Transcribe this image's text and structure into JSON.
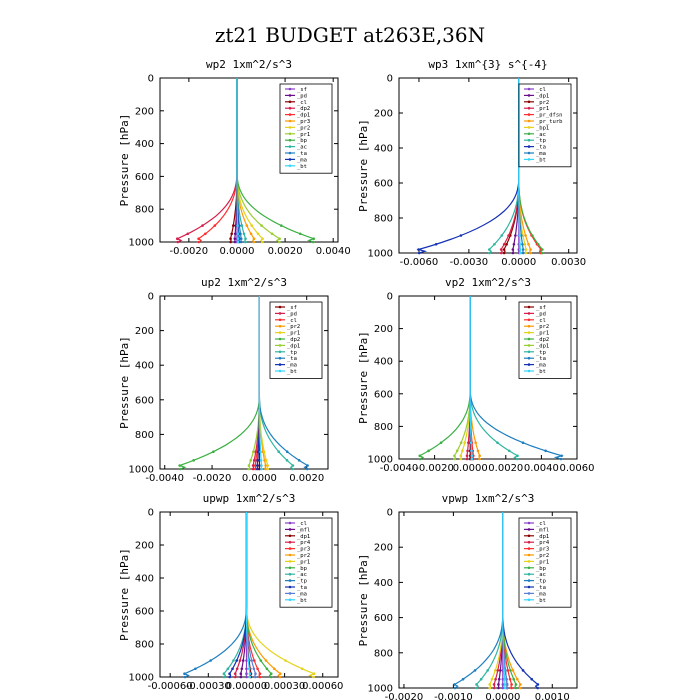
{
  "figure_title": "zt21  BUDGET at263E,36N",
  "chart_data": [
    {
      "type": "line",
      "title": "wp2   1xm^2/s^3",
      "ylabel": "Pressure [hPa]",
      "xlim": [
        -0.0032,
        0.0042
      ],
      "ylim": [
        1000,
        0
      ],
      "xticks": [
        -0.002,
        0.0,
        0.002,
        0.004
      ],
      "xtick_labels": [
        "-0.0020",
        "0.0000",
        "0.0020",
        "0.0040"
      ],
      "yticks": [
        0,
        200,
        400,
        600,
        800,
        1000
      ],
      "ytick_labels": [
        "0",
        "200",
        "400",
        "600",
        "800",
        "1000"
      ],
      "legend_position": "upper-right",
      "series": [
        {
          "name": "_sf",
          "color": "#8a3fc9",
          "peak": 0.0,
          "dir": 1
        },
        {
          "name": "_pd",
          "color": "#6a0f8c",
          "peak": -0.0001,
          "dir": 1
        },
        {
          "name": "_cl",
          "color": "#8b0000",
          "peak": -0.0003,
          "dir": 1
        },
        {
          "name": "_dp2",
          "color": "#d6204b",
          "peak": -0.0028,
          "dir": 1
        },
        {
          "name": "_dp1",
          "color": "#ff2d2d",
          "peak": -0.0018,
          "dir": 1
        },
        {
          "name": "_pr3",
          "color": "#ff9900",
          "peak": 0.0008,
          "dir": 1
        },
        {
          "name": "_pr2",
          "color": "#e6d21b",
          "peak": 0.0012,
          "dir": 1
        },
        {
          "name": "_pr1",
          "color": "#9acd32",
          "peak": 0.002,
          "dir": 1
        },
        {
          "name": "_bp",
          "color": "#3cb043",
          "peak": 0.0036,
          "dir": 1
        },
        {
          "name": "_ac",
          "color": "#2fb5a0",
          "peak": 0.0004,
          "dir": 1
        },
        {
          "name": "_ta",
          "color": "#1f7fbf",
          "peak": 0.0002,
          "dir": 1
        },
        {
          "name": "_ma",
          "color": "#1432b4",
          "peak": 0.0001,
          "dir": 1
        },
        {
          "name": "_bt",
          "color": "#33d6ff",
          "peak": 5e-05,
          "dir": 1
        }
      ]
    },
    {
      "type": "line",
      "title": "wp3   1xm^{3} s^{-4}",
      "ylabel": "Pressure [hPa]",
      "xlim": [
        -0.0072,
        0.0035
      ],
      "ylim": [
        1000,
        0
      ],
      "xticks": [
        -0.006,
        -0.003,
        0.0,
        0.003
      ],
      "xtick_labels": [
        "-0.0060",
        "-0.0030",
        "0.0000",
        "0.0030"
      ],
      "yticks": [
        0,
        200,
        400,
        600,
        800,
        1000
      ],
      "ytick_labels": [
        "0",
        "200",
        "400",
        "600",
        "800",
        "1000"
      ],
      "legend_position": "upper-right",
      "series": [
        {
          "name": "_cl",
          "color": "#8a3fc9",
          "peak": 0.0,
          "dir": 1
        },
        {
          "name": "_dp1",
          "color": "#6a0f8c",
          "peak": -0.0004,
          "dir": 1
        },
        {
          "name": "_pr2",
          "color": "#8b0000",
          "peak": -0.001,
          "dir": 1
        },
        {
          "name": "_pr1",
          "color": "#d6204b",
          "peak": -0.0012,
          "dir": 1
        },
        {
          "name": "_pr_dfsn",
          "color": "#ff2d2d",
          "peak": 0.0015,
          "dir": 1
        },
        {
          "name": "_pr_turb",
          "color": "#ff9900",
          "peak": 0.0008,
          "dir": 1
        },
        {
          "name": "_bp1",
          "color": "#e6d21b",
          "peak": 0.0005,
          "dir": 1
        },
        {
          "name": "_ac",
          "color": "#3cb043",
          "peak": 0.0016,
          "dir": 1
        },
        {
          "name": "_tp",
          "color": "#2fb5a0",
          "peak": -0.002,
          "dir": 1
        },
        {
          "name": "_ta",
          "color": "#1432b4",
          "peak": -0.0068,
          "dir": 1
        },
        {
          "name": "_ma",
          "color": "#1f7fbf",
          "peak": 0.0003,
          "dir": 1
        },
        {
          "name": "_bt",
          "color": "#33d6ff",
          "peak": 0.0001,
          "dir": 1
        }
      ]
    },
    {
      "type": "line",
      "title": "up2   1xm^2/s^3",
      "ylabel": "Pressure [hPa]",
      "xlim": [
        -0.0042,
        0.0029
      ],
      "ylim": [
        1000,
        0
      ],
      "xticks": [
        -0.004,
        -0.002,
        0.0,
        0.002
      ],
      "xtick_labels": [
        "-0.0040",
        "-0.0020",
        "0.0000",
        "0.0020"
      ],
      "yticks": [
        0,
        200,
        400,
        600,
        800,
        1000
      ],
      "ytick_labels": [
        "0",
        "200",
        "400",
        "600",
        "800",
        "1000"
      ],
      "legend_position": "upper-right",
      "series": [
        {
          "name": "_sf",
          "color": "#8b0000",
          "peak": 0.0,
          "dir": 1
        },
        {
          "name": "_pd",
          "color": "#d6204b",
          "peak": -0.0003,
          "dir": 1
        },
        {
          "name": "_cl",
          "color": "#ff2d2d",
          "peak": -0.0002,
          "dir": 1
        },
        {
          "name": "_pr2",
          "color": "#ff9900",
          "peak": 0.0003,
          "dir": 1
        },
        {
          "name": "_pr1",
          "color": "#e6d21b",
          "peak": 0.0004,
          "dir": 1
        },
        {
          "name": "_dp2",
          "color": "#3cb043",
          "peak": -0.0038,
          "dir": 1
        },
        {
          "name": "_dp1",
          "color": "#9acd32",
          "peak": -0.0005,
          "dir": 1
        },
        {
          "name": "_tp",
          "color": "#2fb5a0",
          "peak": 0.0016,
          "dir": 1
        },
        {
          "name": "_ta",
          "color": "#1f7fbf",
          "peak": 0.0023,
          "dir": 1
        },
        {
          "name": "_ma",
          "color": "#1432b4",
          "peak": -0.0001,
          "dir": 1
        },
        {
          "name": "_bt",
          "color": "#33d6ff",
          "peak": 0.0001,
          "dir": 1
        }
      ]
    },
    {
      "type": "line",
      "title": "vp2   1xm^2/s^3",
      "ylabel": "Pressure [hPa]",
      "xlim": [
        -0.004,
        0.006
      ],
      "ylim": [
        1000,
        0
      ],
      "xticks": [
        -0.004,
        -0.002,
        0.0,
        0.002,
        0.004,
        0.006
      ],
      "xtick_labels": [
        "-0.0040",
        "-0.0020",
        "0.0000",
        "0.0020",
        "0.0040",
        "0.0060"
      ],
      "yticks": [
        0,
        200,
        400,
        600,
        800,
        1000
      ],
      "ytick_labels": [
        "0",
        "200",
        "400",
        "600",
        "800",
        "1000"
      ],
      "legend_position": "upper-right",
      "series": [
        {
          "name": "_sf",
          "color": "#8b0000",
          "peak": 0.0,
          "dir": 1
        },
        {
          "name": "_pd",
          "color": "#d6204b",
          "peak": -0.0002,
          "dir": 1
        },
        {
          "name": "_cl",
          "color": "#ff2d2d",
          "peak": 0.0002,
          "dir": 1
        },
        {
          "name": "_pr2",
          "color": "#ff9900",
          "peak": 0.0006,
          "dir": 1
        },
        {
          "name": "_pr1",
          "color": "#e6d21b",
          "peak": -0.0006,
          "dir": 1
        },
        {
          "name": "_dp2",
          "color": "#3cb043",
          "peak": -0.0032,
          "dir": 1
        },
        {
          "name": "_dp1",
          "color": "#9acd32",
          "peak": -0.001,
          "dir": 1
        },
        {
          "name": "_tp",
          "color": "#2fb5a0",
          "peak": 0.003,
          "dir": 1
        },
        {
          "name": "_ta",
          "color": "#1f7fbf",
          "peak": 0.0058,
          "dir": 1
        },
        {
          "name": "_ma",
          "color": "#1432b4",
          "peak": 0.0001,
          "dir": 1
        },
        {
          "name": "_bt",
          "color": "#33d6ff",
          "peak": 0.0001,
          "dir": 1
        }
      ]
    },
    {
      "type": "line",
      "title": "upwp   1xm^2/s^3",
      "ylabel": "Pressure [hPa]",
      "xlim": [
        -0.00068,
        0.00072
      ],
      "ylim": [
        1000,
        0
      ],
      "xticks": [
        -0.0006,
        -0.0003,
        0.0,
        0.0003,
        0.0006
      ],
      "xtick_labels": [
        "-0.00060",
        "-0.00030",
        "0.00000",
        "0.00030",
        "0.00060"
      ],
      "yticks": [
        0,
        200,
        400,
        600,
        800,
        1000
      ],
      "ytick_labels": [
        "0",
        "200",
        "400",
        "600",
        "800",
        "1000"
      ],
      "legend_position": "upper-right",
      "series": [
        {
          "name": "_cl",
          "color": "#8a3fc9",
          "peak": 0.0,
          "dir": 1
        },
        {
          "name": "_mfl",
          "color": "#6a0f8c",
          "peak": -5e-05,
          "dir": 1
        },
        {
          "name": "_dp1",
          "color": "#8b0000",
          "peak": 4e-05,
          "dir": 1
        },
        {
          "name": "_pr4",
          "color": "#d6204b",
          "peak": -0.0001,
          "dir": 1
        },
        {
          "name": "_pr3",
          "color": "#ff2d2d",
          "peak": 0.00012,
          "dir": 1
        },
        {
          "name": "_pr2",
          "color": "#ff9900",
          "peak": 0.0003,
          "dir": 1
        },
        {
          "name": "_pr1",
          "color": "#e6d21b",
          "peak": 0.0006,
          "dir": 1
        },
        {
          "name": "_bp",
          "color": "#3cb043",
          "peak": 0.00022,
          "dir": 1
        },
        {
          "name": "_ac",
          "color": "#2fb5a0",
          "peak": -0.0002,
          "dir": 1
        },
        {
          "name": "_tp",
          "color": "#1f7fbf",
          "peak": -0.00055,
          "dir": 1
        },
        {
          "name": "_ta",
          "color": "#1432b4",
          "peak": -0.00015,
          "dir": 1
        },
        {
          "name": "_ma",
          "color": "#5a7fd6",
          "peak": 8e-05,
          "dir": 1
        },
        {
          "name": "_bt",
          "color": "#33d6ff",
          "peak": 3e-05,
          "dir": 1
        }
      ]
    },
    {
      "type": "line",
      "title": "vpwp   1xm^2/s^3",
      "ylabel": "Pressure [hPa]",
      "xlim": [
        -0.0021,
        0.0015
      ],
      "ylim": [
        1000,
        0
      ],
      "xticks": [
        -0.002,
        -0.001,
        0.0,
        0.001
      ],
      "xtick_labels": [
        "-0.0020",
        "-0.0010",
        "0.0000",
        "0.0010"
      ],
      "yticks": [
        0,
        200,
        400,
        600,
        800,
        1000
      ],
      "ytick_labels": [
        "0",
        "200",
        "400",
        "600",
        "800",
        "1000"
      ],
      "legend_position": "upper-right",
      "series": [
        {
          "name": "_cl",
          "color": "#8a3fc9",
          "peak": 0.0,
          "dir": 1
        },
        {
          "name": "_mfl",
          "color": "#6a0f8c",
          "peak": -0.0001,
          "dir": 1
        },
        {
          "name": "_dp1",
          "color": "#8b0000",
          "peak": 0.0001,
          "dir": 1
        },
        {
          "name": "_pr4",
          "color": "#d6204b",
          "peak": -0.0002,
          "dir": 1
        },
        {
          "name": "_pr3",
          "color": "#ff2d2d",
          "peak": 0.0002,
          "dir": 1
        },
        {
          "name": "_pr2",
          "color": "#ff9900",
          "peak": 0.0004,
          "dir": 1
        },
        {
          "name": "_pr1",
          "color": "#e6d21b",
          "peak": -0.0003,
          "dir": 1
        },
        {
          "name": "_bp",
          "color": "#3cb043",
          "peak": 0.0003,
          "dir": 1
        },
        {
          "name": "_ac",
          "color": "#2fb5a0",
          "peak": -0.0006,
          "dir": 1
        },
        {
          "name": "_tp",
          "color": "#1f7fbf",
          "peak": -0.0011,
          "dir": 1
        },
        {
          "name": "_ta",
          "color": "#1432b4",
          "peak": 0.0008,
          "dir": 1
        },
        {
          "name": "_ma",
          "color": "#5a7fd6",
          "peak": 0.0001,
          "dir": 1
        },
        {
          "name": "_bt",
          "color": "#33d6ff",
          "peak": 5e-05,
          "dir": 1
        }
      ]
    }
  ]
}
